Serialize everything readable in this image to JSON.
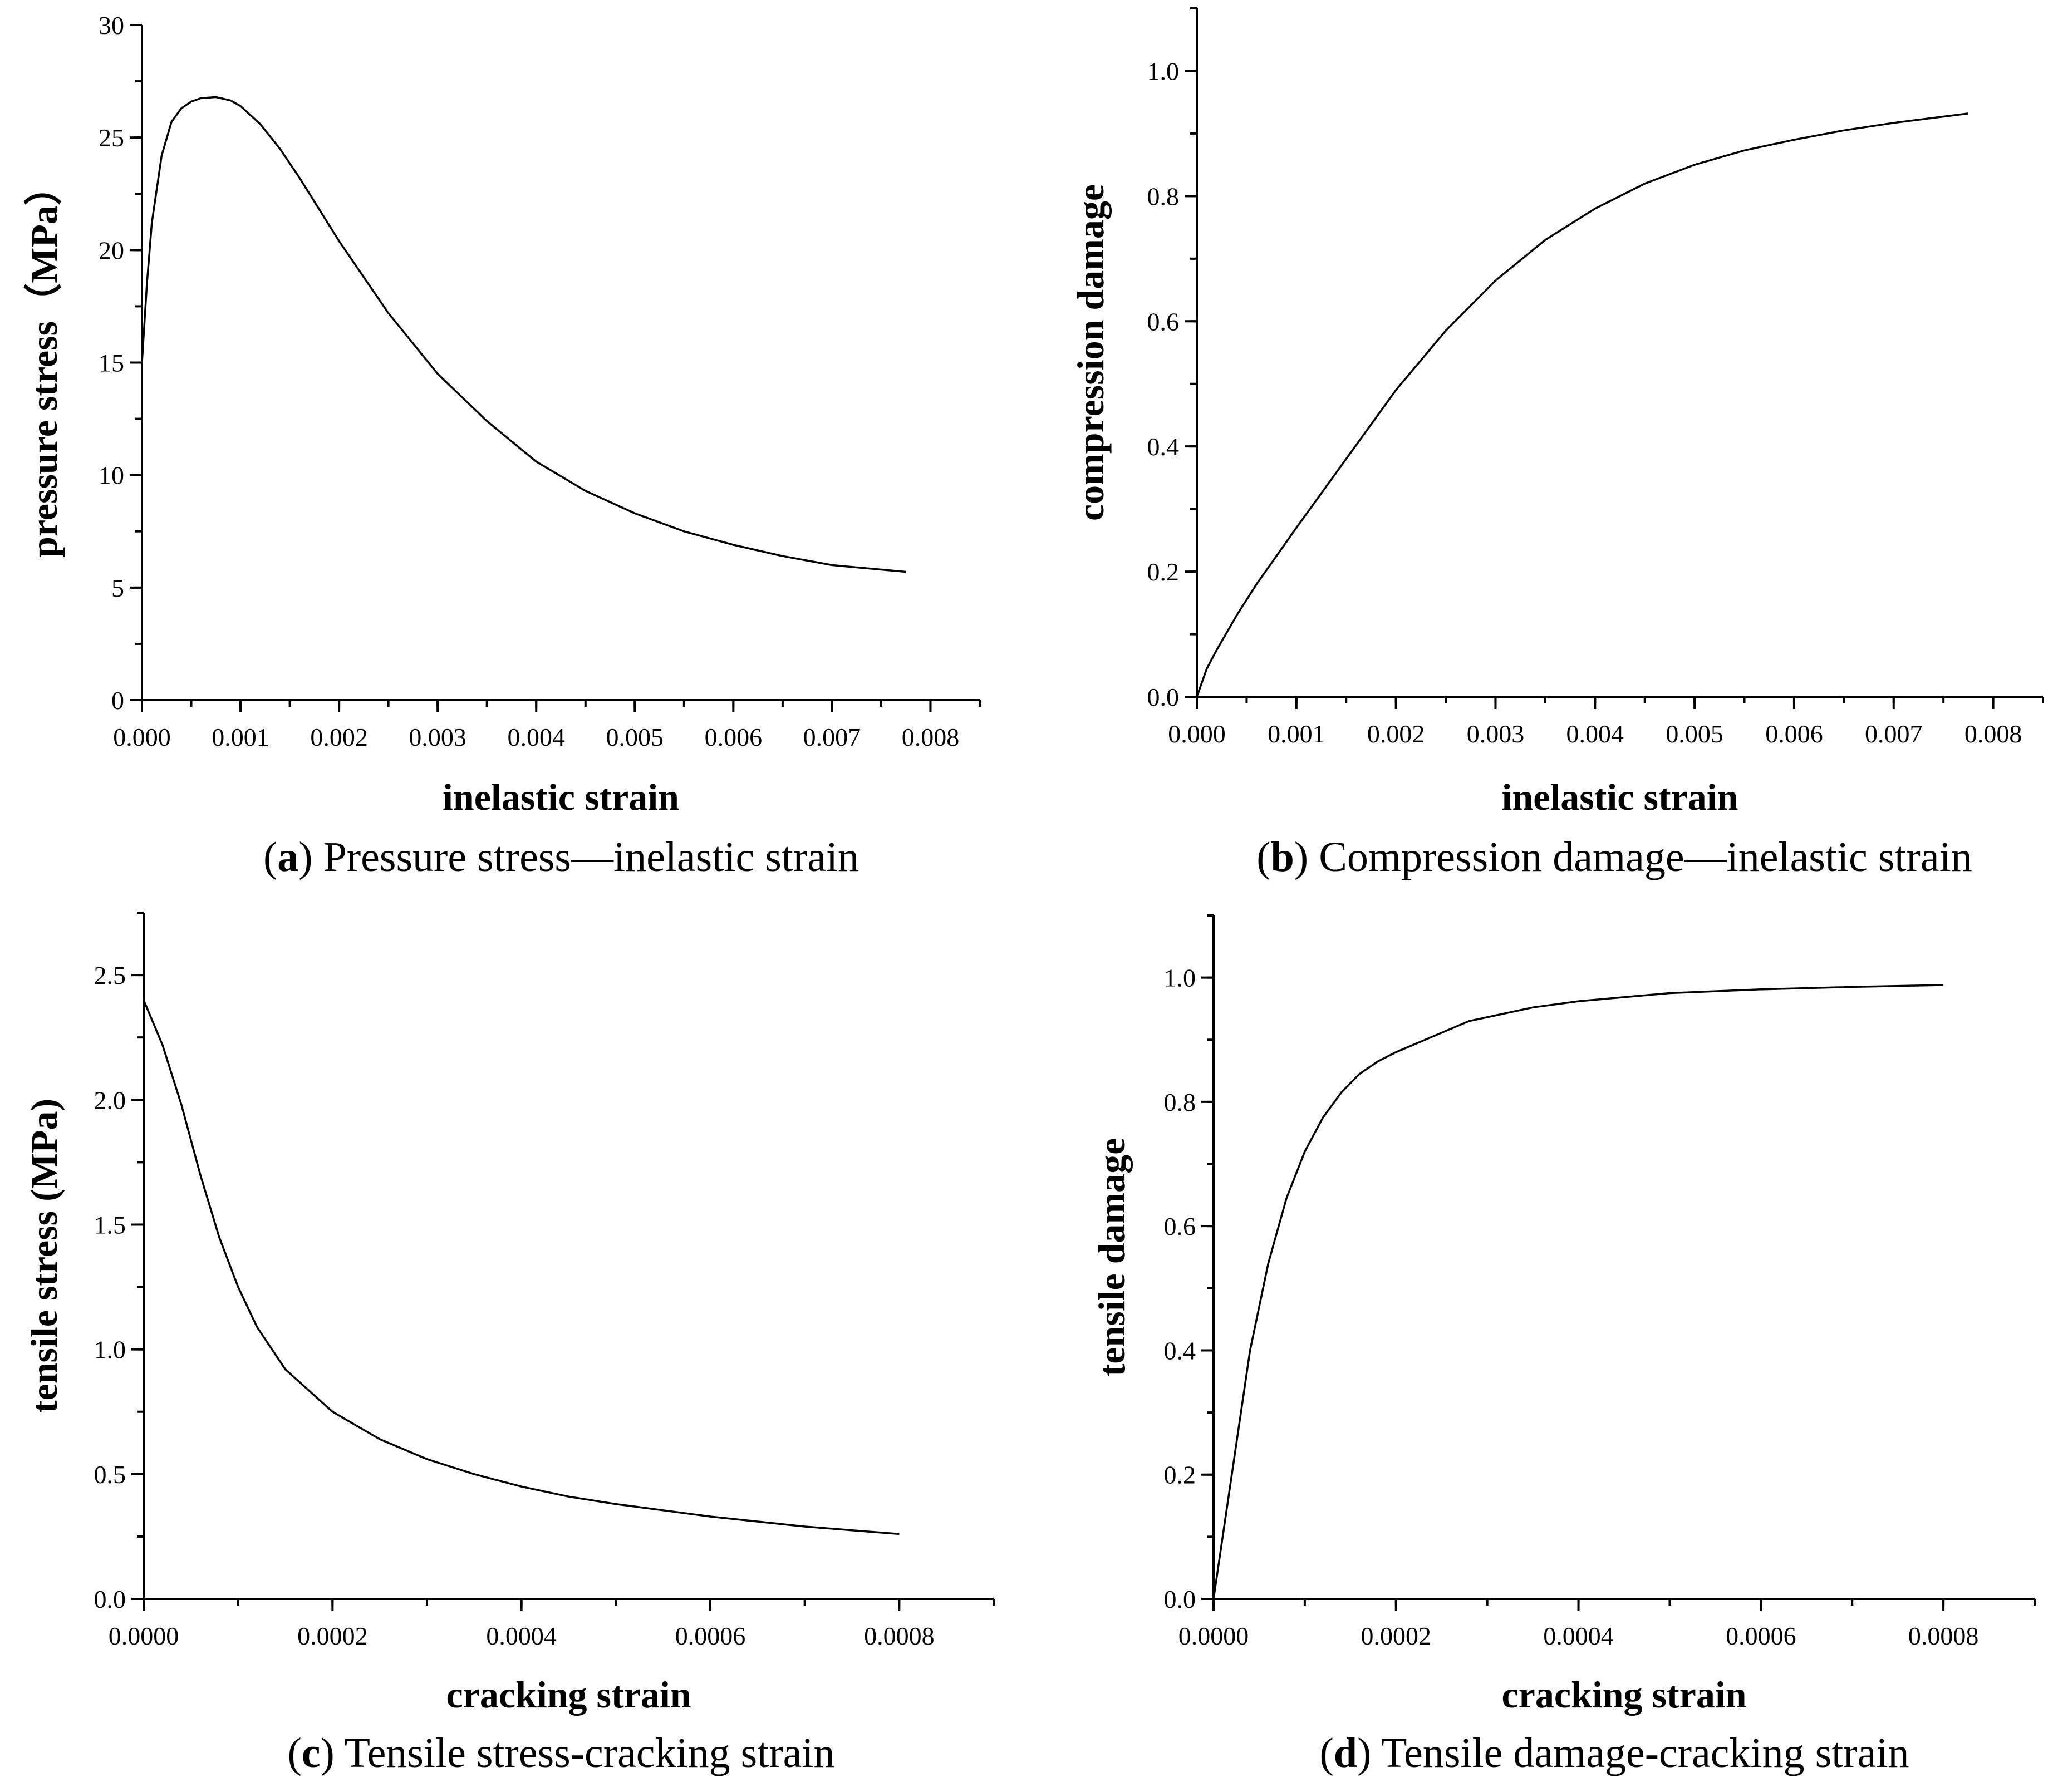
{
  "figure": {
    "panels": [
      {
        "id": "a",
        "caption_letter": "a",
        "caption_text": " Pressure stress—inelastic strain",
        "chart_data": {
          "type": "line",
          "title": "",
          "xlabel": "inelastic strain",
          "ylabel": "pressure stress（MPa）",
          "xlim": [
            0,
            0.0085
          ],
          "ylim": [
            0,
            30
          ],
          "x_ticks": [
            0,
            0.001,
            0.002,
            0.003,
            0.004,
            0.005,
            0.006,
            0.007,
            0.008
          ],
          "x_tick_labels": [
            "0.000",
            "0.001",
            "0.002",
            "0.003",
            "0.004",
            "0.005",
            "0.006",
            "0.007",
            "0.008"
          ],
          "y_ticks": [
            0,
            5,
            10,
            15,
            20,
            25,
            30
          ],
          "y_tick_labels": [
            "0",
            "5",
            "10",
            "15",
            "20",
            "25",
            "30"
          ],
          "x_minor_step": 0.0005,
          "y_minor_step": 2.5,
          "series": [
            {
              "name": "pressure stress",
              "x": [
                0,
                5e-05,
                0.0001,
                0.0002,
                0.0003,
                0.0004,
                0.0005,
                0.0006,
                0.00075,
                0.0009,
                0.001,
                0.0012,
                0.0014,
                0.0016,
                0.0018,
                0.002,
                0.0025,
                0.003,
                0.0035,
                0.004,
                0.0045,
                0.005,
                0.0055,
                0.006,
                0.0065,
                0.007,
                0.0075,
                0.00775
              ],
              "y": [
                15.0,
                18.5,
                21.2,
                24.2,
                25.7,
                26.3,
                26.6,
                26.75,
                26.8,
                26.65,
                26.4,
                25.6,
                24.5,
                23.2,
                21.8,
                20.4,
                17.2,
                14.5,
                12.4,
                10.6,
                9.3,
                8.3,
                7.5,
                6.9,
                6.4,
                6.0,
                5.8,
                5.7
              ]
            }
          ]
        }
      },
      {
        "id": "b",
        "caption_letter": "b",
        "caption_text": " Compression damage—inelastic strain",
        "chart_data": {
          "type": "line",
          "title": "",
          "xlabel": "inelastic strain",
          "ylabel": "compression damage",
          "xlim": [
            0,
            0.0085
          ],
          "ylim": [
            0,
            1.1
          ],
          "x_ticks": [
            0,
            0.001,
            0.002,
            0.003,
            0.004,
            0.005,
            0.006,
            0.007,
            0.008
          ],
          "x_tick_labels": [
            "0.000",
            "0.001",
            "0.002",
            "0.003",
            "0.004",
            "0.005",
            "0.006",
            "0.007",
            "0.008"
          ],
          "y_ticks": [
            0,
            0.2,
            0.4,
            0.6,
            0.8,
            1.0
          ],
          "y_tick_labels": [
            "0.0",
            "0.2",
            "0.4",
            "0.6",
            "0.8",
            "1.0"
          ],
          "x_minor_step": 0.0005,
          "y_minor_step": 0.1,
          "series": [
            {
              "name": "compression damage",
              "x": [
                0,
                0.0001,
                0.0002,
                0.0004,
                0.0006,
                0.0008,
                0.001,
                0.0015,
                0.002,
                0.0025,
                0.003,
                0.0035,
                0.004,
                0.0045,
                0.005,
                0.0055,
                0.006,
                0.0065,
                0.007,
                0.0075,
                0.00775
              ],
              "y": [
                0,
                0.045,
                0.075,
                0.13,
                0.18,
                0.225,
                0.27,
                0.38,
                0.49,
                0.585,
                0.665,
                0.73,
                0.78,
                0.82,
                0.85,
                0.873,
                0.89,
                0.905,
                0.917,
                0.927,
                0.932
              ]
            }
          ]
        }
      },
      {
        "id": "c",
        "caption_letter": "c",
        "caption_text": " Tensile stress-cracking strain",
        "chart_data": {
          "type": "line",
          "title": "",
          "xlabel": "cracking strain",
          "ylabel": "tensile stress (MPa)",
          "xlim": [
            0,
            0.0009
          ],
          "ylim": [
            0,
            2.75
          ],
          "x_ticks": [
            0,
            0.0002,
            0.0004,
            0.0006,
            0.0008
          ],
          "x_tick_labels": [
            "0.0000",
            "0.0002",
            "0.0004",
            "0.0006",
            "0.0008"
          ],
          "y_ticks": [
            0,
            0.5,
            1.0,
            1.5,
            2.0,
            2.5
          ],
          "y_tick_labels": [
            "0.0",
            "0.5",
            "1.0",
            "1.5",
            "2.0",
            "2.5"
          ],
          "x_minor_step": 0.0001,
          "y_minor_step": 0.25,
          "series": [
            {
              "name": "tensile stress",
              "x": [
                0,
                2e-05,
                4e-05,
                6e-05,
                8e-05,
                0.0001,
                0.00012,
                0.00015,
                0.0002,
                0.00025,
                0.0003,
                0.00035,
                0.0004,
                0.00045,
                0.0005,
                0.00055,
                0.0006,
                0.00065,
                0.0007,
                0.00075,
                0.0008
              ],
              "y": [
                2.4,
                2.22,
                1.98,
                1.7,
                1.45,
                1.25,
                1.09,
                0.92,
                0.75,
                0.64,
                0.56,
                0.5,
                0.45,
                0.41,
                0.38,
                0.355,
                0.33,
                0.31,
                0.29,
                0.275,
                0.26
              ]
            }
          ]
        }
      },
      {
        "id": "d",
        "caption_letter": "d",
        "caption_text": " Tensile damage-cracking strain",
        "chart_data": {
          "type": "line",
          "title": "",
          "xlabel": "cracking strain",
          "ylabel": "tensile damage",
          "xlim": [
            0,
            0.0009
          ],
          "ylim": [
            0,
            1.1
          ],
          "x_ticks": [
            0,
            0.0002,
            0.0004,
            0.0006,
            0.0008
          ],
          "x_tick_labels": [
            "0.0000",
            "0.0002",
            "0.0004",
            "0.0006",
            "0.0008"
          ],
          "y_ticks": [
            0,
            0.2,
            0.4,
            0.6,
            0.8,
            1.0
          ],
          "y_tick_labels": [
            "0.0",
            "0.2",
            "0.4",
            "0.6",
            "0.8",
            "1.0"
          ],
          "x_minor_step": 0.0001,
          "y_minor_step": 0.1,
          "series": [
            {
              "name": "tensile damage",
              "x": [
                0,
                1e-05,
                2e-05,
                4e-05,
                6e-05,
                8e-05,
                0.0001,
                0.00012,
                0.00014,
                0.00016,
                0.00018,
                0.0002,
                0.00024,
                0.00028,
                0.00035,
                0.0004,
                0.0005,
                0.0006,
                0.0007,
                0.0008
              ],
              "y": [
                0,
                0.1,
                0.2,
                0.4,
                0.54,
                0.645,
                0.72,
                0.775,
                0.815,
                0.845,
                0.865,
                0.88,
                0.905,
                0.93,
                0.952,
                0.962,
                0.975,
                0.981,
                0.985,
                0.988
              ]
            }
          ]
        }
      }
    ]
  }
}
